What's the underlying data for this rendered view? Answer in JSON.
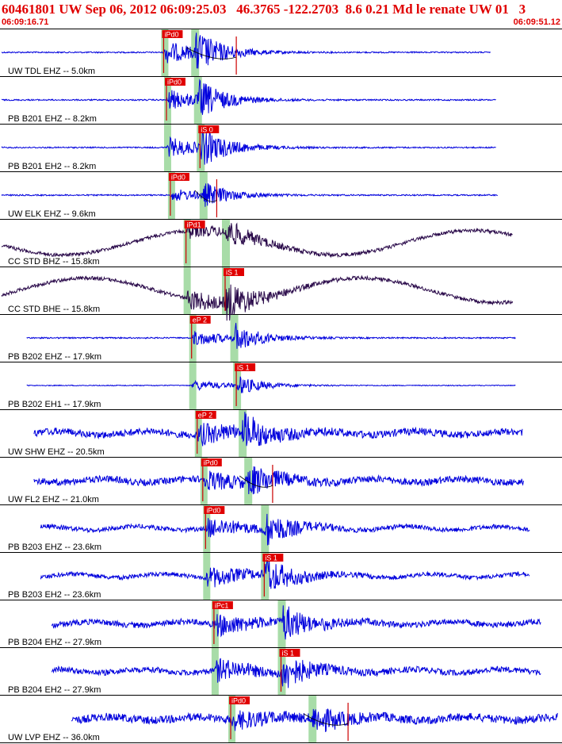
{
  "header": {
    "title": "60461801 UW Sep 06, 2012 06:09:25.03   46.3765 -122.2703  8.6 0.21 Md le renate UW 01   3",
    "start_time": "06:09:16.71",
    "end_time": "06:09:51.12"
  },
  "colors": {
    "title": "#e00000",
    "trace_blue": "#0000dd",
    "trace_dark": "#2a0a4a",
    "pick_box": "#e00000",
    "pick_line": "#cc0000",
    "window_green": "#a8dca8",
    "frame": "#000000"
  },
  "chart_data": {
    "type": "line",
    "title": "60461801 UW Sep 06, 2012 06:09:25.03   46.3765 -122.2703  8.6 0.21 Md le renate UW 01   3",
    "x_range": [
      "06:09:16.71",
      "06:09:51.12"
    ],
    "series": [
      {
        "name": "UW TDL EHZ -- 5.0km",
        "color": "blue",
        "picks": [
          {
            "label": "iPd0",
            "type": "P"
          }
        ],
        "envelope": "event",
        "start_frac": 0.0,
        "end_frac": 0.875,
        "p_frac": 0.29,
        "s_frac": 0.345,
        "noise": 0.03,
        "peak": 0.9,
        "coda_marker": 0.42
      },
      {
        "name": "PB B201 EHZ -- 8.2km",
        "color": "blue",
        "picks": [
          {
            "label": "iPd0",
            "type": "P"
          }
        ],
        "envelope": "event",
        "start_frac": 0.0,
        "end_frac": 0.885,
        "p_frac": 0.295,
        "s_frac": 0.35,
        "noise": 0.03,
        "peak": 0.8
      },
      {
        "name": "PB B201 EH2 -- 8.2km",
        "color": "blue",
        "picks": [
          {
            "label": "iS 0",
            "type": "S"
          }
        ],
        "envelope": "event",
        "start_frac": 0.0,
        "end_frac": 0.885,
        "p_frac": 0.295,
        "s_frac": 0.355,
        "noise": 0.03,
        "peak": 0.8
      },
      {
        "name": "UW ELK EHZ -- 9.6km",
        "color": "blue",
        "picks": [
          {
            "label": "iPd0",
            "type": "P"
          }
        ],
        "envelope": "event",
        "start_frac": 0.0,
        "end_frac": 0.888,
        "p_frac": 0.302,
        "s_frac": 0.36,
        "noise": 0.03,
        "peak": 0.5,
        "coda_marker": 0.385
      },
      {
        "name": "CC STD BHZ -- 15.8km",
        "color": "dark",
        "picks": [
          {
            "label": "iPd1",
            "type": "P"
          }
        ],
        "envelope": "wave",
        "start_frac": 0.0,
        "end_frac": 0.915,
        "p_frac": 0.33,
        "s_frac": 0.4,
        "noise": 0.08,
        "peak": 0.55
      },
      {
        "name": "CC STD BHE -- 15.8km",
        "color": "dark",
        "picks": [
          {
            "label": "iS 1",
            "type": "S"
          }
        ],
        "envelope": "wave",
        "start_frac": 0.0,
        "end_frac": 0.915,
        "p_frac": 0.33,
        "s_frac": 0.4,
        "noise": 0.08,
        "peak": 0.85
      },
      {
        "name": "PB B202 EHZ -- 17.9km",
        "color": "blue",
        "picks": [
          {
            "label": "eP 2",
            "type": "P"
          }
        ],
        "envelope": "event",
        "start_frac": 0.045,
        "end_frac": 0.92,
        "p_frac": 0.34,
        "s_frac": 0.415,
        "noise": 0.03,
        "peak": 0.6
      },
      {
        "name": "PB B202 EH1 -- 17.9km",
        "color": "blue",
        "picks": [
          {
            "label": "iS 1",
            "type": "S"
          }
        ],
        "envelope": "event",
        "start_frac": 0.045,
        "end_frac": 0.92,
        "p_frac": 0.34,
        "s_frac": 0.42,
        "noise": 0.02,
        "peak": 0.4
      },
      {
        "name": "UW SHW EHZ -- 20.5km",
        "color": "blue",
        "picks": [
          {
            "label": "eP 2",
            "type": "P"
          }
        ],
        "envelope": "noisy",
        "start_frac": 0.058,
        "end_frac": 0.932,
        "p_frac": 0.35,
        "s_frac": 0.43,
        "noise": 0.16,
        "peak": 0.75
      },
      {
        "name": "UW FL2 EHZ -- 21.0km",
        "color": "blue",
        "picks": [
          {
            "label": "iPd0",
            "type": "P"
          }
        ],
        "envelope": "noisy",
        "start_frac": 0.058,
        "end_frac": 0.935,
        "p_frac": 0.36,
        "s_frac": 0.44,
        "noise": 0.15,
        "peak": 0.65,
        "coda_marker": 0.485
      },
      {
        "name": "PB B203 EHZ -- 23.6km",
        "color": "blue",
        "picks": [
          {
            "label": "iPd0",
            "type": "P"
          }
        ],
        "envelope": "noisy",
        "start_frac": 0.07,
        "end_frac": 0.945,
        "p_frac": 0.365,
        "s_frac": 0.47,
        "noise": 0.1,
        "peak": 0.75
      },
      {
        "name": "PB B203 EH2 -- 23.6km",
        "color": "blue",
        "picks": [
          {
            "label": "iS 1",
            "type": "S"
          }
        ],
        "envelope": "noisy",
        "start_frac": 0.07,
        "end_frac": 0.945,
        "p_frac": 0.365,
        "s_frac": 0.47,
        "noise": 0.1,
        "peak": 0.8
      },
      {
        "name": "PB B204 EHZ -- 27.9km",
        "color": "blue",
        "picks": [
          {
            "label": "iPc1",
            "type": "P"
          }
        ],
        "envelope": "noisy",
        "start_frac": 0.09,
        "end_frac": 0.965,
        "p_frac": 0.38,
        "s_frac": 0.5,
        "noise": 0.13,
        "peak": 0.8
      },
      {
        "name": "PB B204 EH2 -- 27.9km",
        "color": "blue",
        "picks": [
          {
            "label": "iS 1",
            "type": "S"
          }
        ],
        "envelope": "noisy",
        "start_frac": 0.09,
        "end_frac": 0.965,
        "p_frac": 0.38,
        "s_frac": 0.5,
        "noise": 0.13,
        "peak": 0.8
      },
      {
        "name": "UW LVP EHZ -- 36.0km",
        "color": "blue",
        "picks": [
          {
            "label": "iPd0",
            "type": "P"
          }
        ],
        "envelope": "noisy",
        "start_frac": 0.125,
        "end_frac": 0.995,
        "p_frac": 0.41,
        "s_frac": 0.555,
        "noise": 0.18,
        "peak": 0.6,
        "coda_marker": 0.62
      }
    ]
  }
}
